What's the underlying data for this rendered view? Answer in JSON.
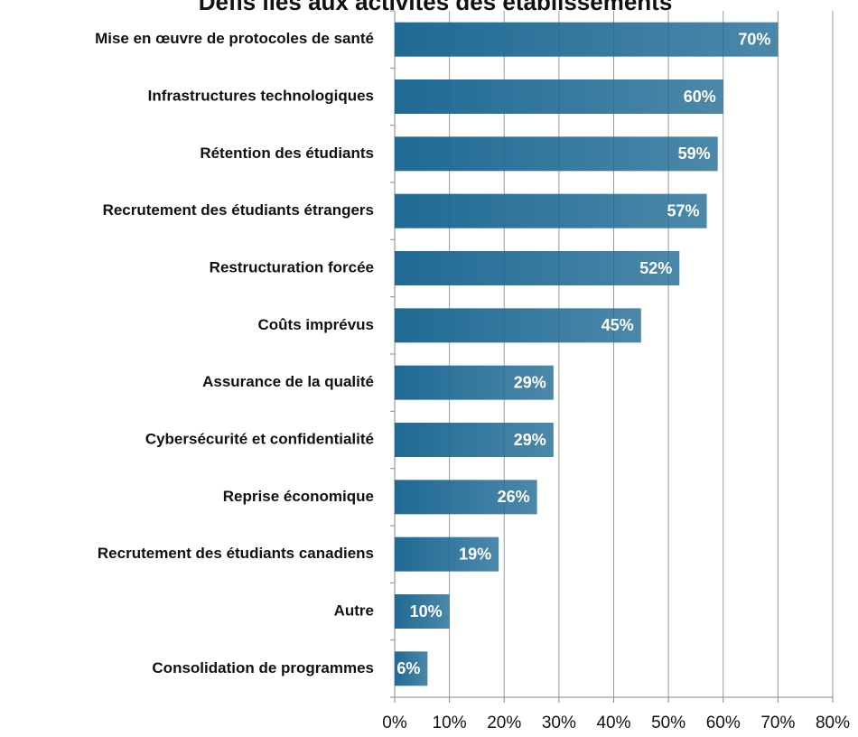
{
  "chart_data": {
    "type": "bar",
    "orientation": "horizontal",
    "title": "Défis liés aux activités des établissements",
    "categories": [
      "Mise en œuvre de protocoles de santé",
      "Infrastructures technologiques",
      "Rétention des étudiants",
      "Recrutement des étudiants étrangers",
      "Restructuration forcée",
      "Coûts imprévus",
      "Assurance de la qualité",
      "Cybersécurité et confidentialité",
      "Reprise économique",
      "Recrutement des étudiants canadiens",
      "Autre",
      "Consolidation de programmes"
    ],
    "values": [
      70,
      60,
      59,
      57,
      52,
      45,
      29,
      29,
      26,
      19,
      10,
      6
    ],
    "value_labels": [
      "70%",
      "60%",
      "59%",
      "57%",
      "52%",
      "45%",
      "29%",
      "29%",
      "26%",
      "19%",
      "10%",
      "6%"
    ],
    "color": "#1f6a94",
    "xlim": [
      0,
      80
    ],
    "xticks": [
      {
        "value": 0,
        "label": "0%"
      },
      {
        "value": 10,
        "label": "10%"
      },
      {
        "value": 20,
        "label": "20%"
      },
      {
        "value": 30,
        "label": "30%"
      },
      {
        "value": 40,
        "label": "40%"
      },
      {
        "value": 50,
        "label": "50%"
      },
      {
        "value": 60,
        "label": "60%"
      },
      {
        "value": 70,
        "label": "70%"
      },
      {
        "value": 80,
        "label": "80%"
      }
    ],
    "grid": true
  }
}
